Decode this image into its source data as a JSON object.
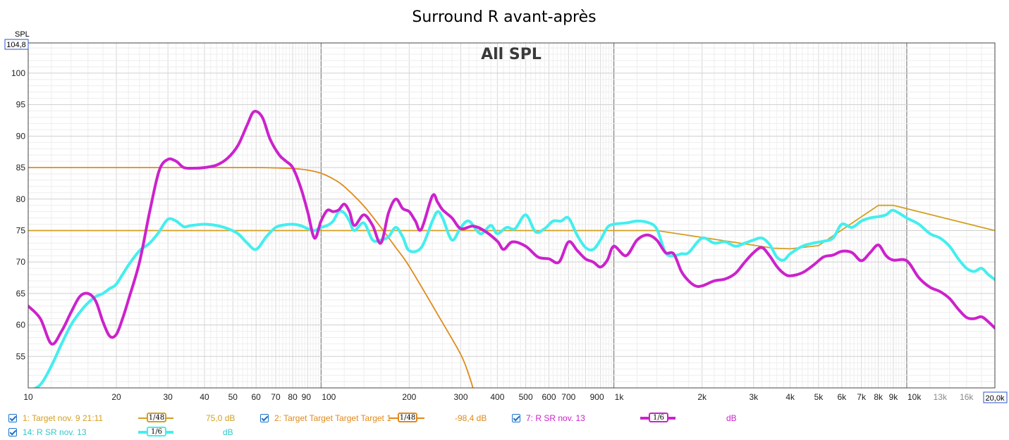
{
  "chart_data": {
    "type": "line",
    "title": "Surround R avant-après",
    "overlay_title": "All SPL",
    "ylabel": "SPL",
    "y_max_display": "104,8",
    "x_max_display": "20,0k",
    "x_scale": "log",
    "xlim": [
      10,
      20000
    ],
    "ylim": [
      50,
      104.8
    ],
    "grid": true,
    "y_ticks": [
      55,
      60,
      65,
      70,
      75,
      80,
      85,
      90,
      95,
      100
    ],
    "x_ticks": [
      {
        "v": 10,
        "label": "10",
        "light": false
      },
      {
        "v": 20,
        "label": "20",
        "light": false
      },
      {
        "v": 30,
        "label": "30",
        "light": false
      },
      {
        "v": 40,
        "label": "40",
        "light": false
      },
      {
        "v": 50,
        "label": "50",
        "light": false
      },
      {
        "v": 60,
        "label": "60",
        "light": false
      },
      {
        "v": 70,
        "label": "70",
        "light": false
      },
      {
        "v": 80,
        "label": "80",
        "light": false
      },
      {
        "v": 90,
        "label": "90",
        "light": false
      },
      {
        "v": 100,
        "label": "100",
        "light": false
      },
      {
        "v": 200,
        "label": "200",
        "light": false
      },
      {
        "v": 300,
        "label": "300",
        "light": false
      },
      {
        "v": 400,
        "label": "400",
        "light": false
      },
      {
        "v": 500,
        "label": "500",
        "light": false
      },
      {
        "v": 600,
        "label": "600",
        "light": false
      },
      {
        "v": 700,
        "label": "700",
        "light": false
      },
      {
        "v": 900,
        "label": "900",
        "light": false
      },
      {
        "v": 1000,
        "label": "1k",
        "light": false
      },
      {
        "v": 2000,
        "label": "2k",
        "light": false
      },
      {
        "v": 3000,
        "label": "3k",
        "light": false
      },
      {
        "v": 4000,
        "label": "4k",
        "light": false
      },
      {
        "v": 5000,
        "label": "5k",
        "light": false
      },
      {
        "v": 6000,
        "label": "6k",
        "light": false
      },
      {
        "v": 7000,
        "label": "7k",
        "light": false
      },
      {
        "v": 8000,
        "label": "8k",
        "light": false
      },
      {
        "v": 9000,
        "label": "9k",
        "light": false
      },
      {
        "v": 10000,
        "label": "10k",
        "light": false
      },
      {
        "v": 13000,
        "label": "13k",
        "light": true
      },
      {
        "v": 16000,
        "label": "16k",
        "light": true
      }
    ],
    "series": [
      {
        "name": "1: Target nov. 9 21:11",
        "color": "#d4a020",
        "width": 1.8,
        "smoothing": "1/48",
        "value": "75,0 dB",
        "x": [
          10,
          1400,
          3500,
          4000,
          5000,
          8000,
          9000,
          20000
        ],
        "y": [
          75,
          75,
          72.2,
          72.1,
          72.6,
          79.0,
          79.0,
          75.0
        ]
      },
      {
        "name": "2: Target Target Target Target 1",
        "color": "#e08a1c",
        "width": 1.8,
        "smoothing": "1/48",
        "value": "-98,4 dB",
        "x": [
          10,
          40,
          60,
          70,
          80,
          90,
          100,
          110,
          120,
          140,
          160,
          180,
          200,
          250,
          300,
          320,
          330
        ],
        "y": [
          85,
          85,
          85,
          84.95,
          84.85,
          84.6,
          84.1,
          83.2,
          82.0,
          78.9,
          75.5,
          72.3,
          69.3,
          61.7,
          55.3,
          52.0,
          50.0
        ]
      },
      {
        "name": "7: R SR nov. 13",
        "color": "#cc22cc",
        "width": 4,
        "smoothing": "1/6",
        "value": "dB",
        "x": [
          10,
          11,
          12,
          13,
          14,
          15,
          16,
          17,
          18,
          19,
          20,
          21,
          22,
          24,
          26,
          28,
          30,
          32,
          34,
          37,
          40,
          44,
          48,
          52,
          56,
          59,
          63,
          67,
          72,
          76,
          80,
          85,
          90,
          95,
          100,
          105,
          110,
          115,
          120,
          125,
          130,
          140,
          150,
          160,
          170,
          180,
          190,
          200,
          210,
          220,
          240,
          250,
          260,
          280,
          300,
          330,
          360,
          400,
          420,
          450,
          500,
          550,
          600,
          650,
          700,
          750,
          800,
          850,
          900,
          950,
          1000,
          1100,
          1200,
          1300,
          1400,
          1500,
          1600,
          1700,
          1800,
          1900,
          2000,
          2200,
          2400,
          2600,
          2800,
          3000,
          3200,
          3400,
          3600,
          3800,
          4000,
          4400,
          4800,
          5200,
          5600,
          6000,
          6500,
          7000,
          7500,
          8000,
          8500,
          9000,
          10000,
          11000,
          12000,
          13000,
          14000,
          15000,
          16000,
          17000,
          18000,
          19000,
          20000
        ],
        "y": [
          63.0,
          61.0,
          57.0,
          59.0,
          62.0,
          64.5,
          65.0,
          63.8,
          60.5,
          58.2,
          58.5,
          61.0,
          64.0,
          70.0,
          78.0,
          84.5,
          86.3,
          86.0,
          85.0,
          84.9,
          85.0,
          85.4,
          86.5,
          88.5,
          91.8,
          93.9,
          93.0,
          89.5,
          87.0,
          86.0,
          85.0,
          82.0,
          78.0,
          73.8,
          76.5,
          78.2,
          78.0,
          78.3,
          79.2,
          78.0,
          75.8,
          77.5,
          75.8,
          73.0,
          77.8,
          80.0,
          78.5,
          78.0,
          76.5,
          75.2,
          80.5,
          79.5,
          78.3,
          77.0,
          75.3,
          75.7,
          75.0,
          73.3,
          72.0,
          73.2,
          72.5,
          70.8,
          70.5,
          70.0,
          73.2,
          71.8,
          70.5,
          70.0,
          69.2,
          70.3,
          72.5,
          71.0,
          73.5,
          74.3,
          73.5,
          71.5,
          71.3,
          68.5,
          67.0,
          66.2,
          66.2,
          67.0,
          67.3,
          68.2,
          70.0,
          71.5,
          72.3,
          71.0,
          69.3,
          68.2,
          67.8,
          68.3,
          69.5,
          70.8,
          71.1,
          71.7,
          71.5,
          70.2,
          71.5,
          72.7,
          71.0,
          70.3,
          70.2,
          67.5,
          66.0,
          65.3,
          64.2,
          62.5,
          61.2,
          61.0,
          61.3,
          60.5,
          59.5
        ]
      },
      {
        "name": "14: R SR nov. 13",
        "color": "#44eeee",
        "width": 4,
        "smoothing": "1/6",
        "value": "dB",
        "x": [
          10,
          11,
          12,
          13,
          14,
          15,
          16,
          17,
          18,
          19,
          20,
          22,
          24,
          26,
          28,
          30,
          32,
          34,
          36,
          40,
          44,
          48,
          52,
          56,
          60,
          65,
          70,
          75,
          80,
          85,
          90,
          95,
          100,
          105,
          110,
          115,
          120,
          125,
          130,
          140,
          150,
          160,
          170,
          180,
          190,
          200,
          220,
          240,
          250,
          260,
          280,
          300,
          320,
          350,
          380,
          400,
          430,
          460,
          500,
          540,
          580,
          620,
          660,
          700,
          750,
          800,
          850,
          900,
          950,
          1000,
          1100,
          1200,
          1300,
          1400,
          1500,
          1600,
          1700,
          1800,
          2000,
          2200,
          2400,
          2600,
          2800,
          3000,
          3200,
          3400,
          3600,
          3800,
          4000,
          4400,
          4800,
          5200,
          5600,
          6000,
          6500,
          7000,
          7500,
          8000,
          8500,
          9000,
          10000,
          11000,
          12000,
          13000,
          14000,
          15000,
          16000,
          17000,
          18000,
          19000,
          20000
        ],
        "y": [
          49.5,
          50.5,
          53.5,
          57.0,
          60.0,
          62.0,
          63.5,
          64.5,
          65.0,
          65.8,
          66.5,
          69.5,
          71.8,
          73.0,
          74.8,
          76.8,
          76.5,
          75.6,
          75.8,
          76.0,
          75.8,
          75.3,
          74.5,
          73.0,
          72.0,
          74.0,
          75.5,
          75.9,
          76.0,
          75.8,
          75.3,
          75.0,
          75.5,
          75.8,
          76.5,
          78.0,
          77.8,
          76.5,
          75.0,
          76.2,
          73.5,
          73.5,
          74.0,
          75.5,
          74.0,
          71.8,
          72.3,
          76.5,
          78.0,
          77.0,
          73.5,
          75.5,
          76.5,
          74.5,
          75.8,
          74.5,
          75.5,
          75.3,
          77.5,
          74.8,
          75.3,
          76.5,
          76.5,
          77.0,
          74.2,
          72.3,
          72.0,
          73.5,
          75.5,
          76.0,
          76.2,
          76.5,
          76.3,
          75.3,
          71.5,
          71.0,
          71.3,
          71.5,
          73.8,
          73.0,
          73.2,
          72.5,
          73.0,
          73.5,
          73.8,
          72.8,
          70.8,
          70.3,
          71.3,
          72.5,
          73.0,
          73.3,
          73.8,
          76.0,
          75.5,
          76.5,
          77.0,
          77.2,
          77.5,
          78.2,
          77.0,
          76.0,
          74.5,
          73.8,
          72.5,
          70.5,
          69.0,
          68.5,
          69.0,
          68.0,
          67.2
        ]
      }
    ]
  },
  "legend": {
    "items": [
      {
        "name": "1: Target nov. 9 21:11",
        "smoothing": "1/48",
        "value": "75,0 dB",
        "color": "#d4a020"
      },
      {
        "name": "2: Target Target Target Target 1",
        "smoothing": "1/48",
        "value": "-98,4 dB",
        "color": "#e08a1c"
      },
      {
        "name": "7: R SR nov. 13",
        "smoothing": "1/6",
        "value": "dB",
        "color": "#cc22cc"
      },
      {
        "name": "14: R SR nov. 13",
        "smoothing": "1/6",
        "value": "dB",
        "color": "#44eeee"
      }
    ]
  }
}
